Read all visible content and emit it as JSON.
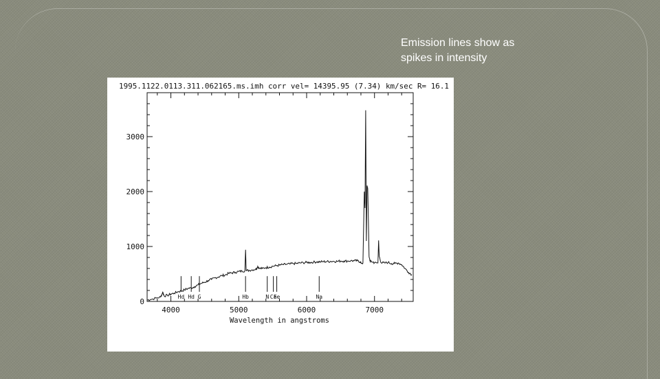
{
  "slide": {
    "caption_line1": "Emission lines show as",
    "caption_line2": "spikes in intensity",
    "background": "#8a8c7d",
    "caption_color": "#ffffff"
  },
  "chart_data": {
    "type": "line",
    "title": "1995.1122.0113.311.062165.ms.imh   corr vel= 14395.95 (7.34) km/sec R= 16.1",
    "xlabel": "Wavelength in angstroms",
    "ylabel": "",
    "xlim": [
      3650,
      7570
    ],
    "ylim": [
      0,
      3800
    ],
    "x_ticks": [
      4000,
      5000,
      6000,
      7000
    ],
    "x_tick_labels": [
      "4000",
      "5000",
      "6000",
      "7000"
    ],
    "y_ticks": [
      0,
      1000,
      2000,
      3000
    ],
    "y_tick_labels": [
      "0",
      "1000",
      "2000",
      "3000"
    ],
    "grid": false,
    "series": [
      {
        "values": [
          [
            3650,
            25
          ],
          [
            3700,
            35
          ],
          [
            3780,
            60
          ],
          [
            3850,
            80
          ],
          [
            3880,
            170
          ],
          [
            3900,
            100
          ],
          [
            3950,
            110
          ],
          [
            4000,
            135
          ],
          [
            4050,
            150
          ],
          [
            4100,
            175
          ],
          [
            4150,
            190
          ],
          [
            4200,
            210
          ],
          [
            4250,
            235
          ],
          [
            4300,
            245
          ],
          [
            4350,
            270
          ],
          [
            4400,
            300
          ],
          [
            4450,
            330
          ],
          [
            4500,
            350
          ],
          [
            4550,
            380
          ],
          [
            4600,
            400
          ],
          [
            4650,
            430
          ],
          [
            4700,
            445
          ],
          [
            4750,
            470
          ],
          [
            4800,
            480
          ],
          [
            4850,
            510
          ],
          [
            4900,
            520
          ],
          [
            4950,
            530
          ],
          [
            5000,
            545
          ],
          [
            5050,
            550
          ],
          [
            5090,
            560
          ],
          [
            5100,
            940
          ],
          [
            5110,
            560
          ],
          [
            5150,
            565
          ],
          [
            5200,
            575
          ],
          [
            5250,
            590
          ],
          [
            5270,
            610
          ],
          [
            5280,
            640
          ],
          [
            5300,
            600
          ],
          [
            5350,
            600
          ],
          [
            5400,
            615
          ],
          [
            5450,
            625
          ],
          [
            5500,
            640
          ],
          [
            5550,
            650
          ],
          [
            5600,
            660
          ],
          [
            5650,
            670
          ],
          [
            5700,
            675
          ],
          [
            5750,
            680
          ],
          [
            5800,
            690
          ],
          [
            5850,
            690
          ],
          [
            5900,
            700
          ],
          [
            5950,
            705
          ],
          [
            6000,
            710
          ],
          [
            6050,
            710
          ],
          [
            6100,
            715
          ],
          [
            6150,
            720
          ],
          [
            6200,
            720
          ],
          [
            6250,
            725
          ],
          [
            6300,
            725
          ],
          [
            6350,
            730
          ],
          [
            6400,
            730
          ],
          [
            6450,
            730
          ],
          [
            6500,
            735
          ],
          [
            6550,
            735
          ],
          [
            6600,
            735
          ],
          [
            6650,
            740
          ],
          [
            6700,
            740
          ],
          [
            6750,
            740
          ],
          [
            6790,
            720
          ],
          [
            6800,
            700
          ],
          [
            6830,
            700
          ],
          [
            6850,
            2000
          ],
          [
            6860,
            1700
          ],
          [
            6870,
            3480
          ],
          [
            6880,
            1100
          ],
          [
            6890,
            2100
          ],
          [
            6900,
            2050
          ],
          [
            6910,
            1500
          ],
          [
            6920,
            820
          ],
          [
            6940,
            720
          ],
          [
            6980,
            720
          ],
          [
            7000,
            700
          ],
          [
            7050,
            700
          ],
          [
            7060,
            1110
          ],
          [
            7070,
            820
          ],
          [
            7100,
            700
          ],
          [
            7150,
            700
          ],
          [
            7200,
            710
          ],
          [
            7250,
            690
          ],
          [
            7300,
            690
          ],
          [
            7350,
            700
          ],
          [
            7400,
            670
          ],
          [
            7450,
            600
          ],
          [
            7500,
            530
          ],
          [
            7550,
            490
          ]
        ]
      }
    ],
    "line_labels": [
      {
        "x": 5100,
        "label": "Hb"
      },
      {
        "x": 5420,
        "label": "N"
      },
      {
        "x": 5510,
        "label": "Ca"
      },
      {
        "x": 5560,
        "label": "Fe"
      },
      {
        "x": 6185,
        "label": "Na"
      },
      {
        "x": 4420,
        "label": "G"
      },
      {
        "x": 4300,
        "label": "Hd"
      },
      {
        "x": 4150,
        "label": "Hd"
      }
    ],
    "label_marker_color": "#111111",
    "line_color": "#111111"
  }
}
